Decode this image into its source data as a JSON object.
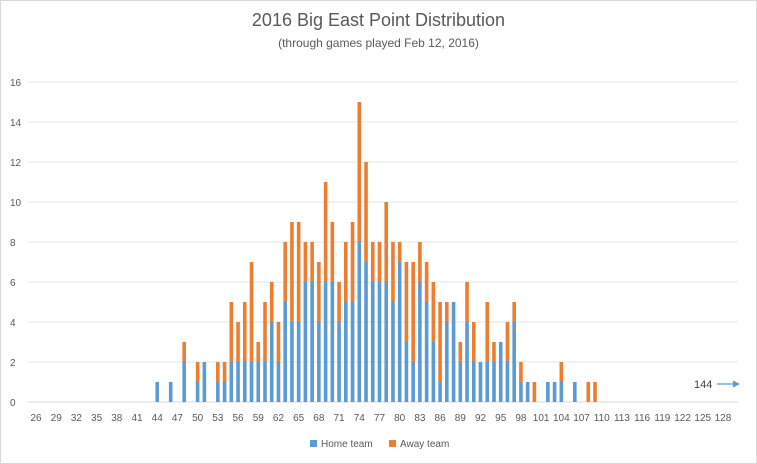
{
  "chart_data": {
    "type": "bar",
    "stacked": true,
    "title": "2016 Big East Point Distribution",
    "subtitle": "(through games played Feb 12, 2016)",
    "xlabel": "",
    "ylabel": "",
    "ylim": [
      0,
      16
    ],
    "y_ticks": [
      0,
      2,
      4,
      6,
      8,
      10,
      12,
      14,
      16
    ],
    "x_start": 26,
    "x_end": 128,
    "x_tick_labels": [
      "26",
      "29",
      "32",
      "35",
      "38",
      "41",
      "44",
      "47",
      "50",
      "53",
      "56",
      "59",
      "62",
      "65",
      "68",
      "71",
      "74",
      "77",
      "80",
      "83",
      "86",
      "89",
      "92",
      "95",
      "98",
      "101",
      "104",
      "107",
      "110",
      "113",
      "116",
      "119",
      "122",
      "125",
      "128"
    ],
    "grid": "horizontal",
    "legend_position": "bottom",
    "series": [
      {
        "name": "Home team",
        "color": "#5b9bd5",
        "points": [
          [
            44,
            1
          ],
          [
            46,
            1
          ],
          [
            48,
            2
          ],
          [
            50,
            1
          ],
          [
            51,
            2
          ],
          [
            53,
            1
          ],
          [
            54,
            1
          ],
          [
            55,
            2
          ],
          [
            56,
            2
          ],
          [
            57,
            2
          ],
          [
            58,
            2
          ],
          [
            59,
            2
          ],
          [
            60,
            2
          ],
          [
            61,
            4
          ],
          [
            62,
            2
          ],
          [
            63,
            5
          ],
          [
            64,
            4
          ],
          [
            65,
            4
          ],
          [
            66,
            6
          ],
          [
            67,
            6
          ],
          [
            68,
            4
          ],
          [
            69,
            6
          ],
          [
            70,
            6
          ],
          [
            71,
            4
          ],
          [
            72,
            5
          ],
          [
            73,
            5
          ],
          [
            74,
            8
          ],
          [
            75,
            7
          ],
          [
            76,
            6
          ],
          [
            77,
            6
          ],
          [
            78,
            6
          ],
          [
            79,
            5
          ],
          [
            80,
            7
          ],
          [
            81,
            3
          ],
          [
            82,
            2
          ],
          [
            83,
            6
          ],
          [
            84,
            5
          ],
          [
            85,
            3
          ],
          [
            86,
            1
          ],
          [
            87,
            4
          ],
          [
            88,
            5
          ],
          [
            89,
            2
          ],
          [
            90,
            4
          ],
          [
            91,
            2
          ],
          [
            92,
            2
          ],
          [
            93,
            2
          ],
          [
            94,
            2
          ],
          [
            95,
            3
          ],
          [
            96,
            2
          ],
          [
            97,
            4
          ],
          [
            98,
            1
          ],
          [
            99,
            1
          ],
          [
            102,
            1
          ],
          [
            103,
            1
          ],
          [
            104,
            1
          ],
          [
            106,
            1
          ]
        ]
      },
      {
        "name": "Away team",
        "color": "#ed7d31",
        "points": [
          [
            48,
            1
          ],
          [
            50,
            1
          ],
          [
            51,
            0
          ],
          [
            53,
            1
          ],
          [
            54,
            1
          ],
          [
            55,
            3
          ],
          [
            56,
            2
          ],
          [
            57,
            3
          ],
          [
            58,
            5
          ],
          [
            59,
            1
          ],
          [
            60,
            3
          ],
          [
            61,
            2
          ],
          [
            62,
            2
          ],
          [
            63,
            3
          ],
          [
            64,
            5
          ],
          [
            65,
            5
          ],
          [
            66,
            2
          ],
          [
            67,
            2
          ],
          [
            68,
            3
          ],
          [
            69,
            5
          ],
          [
            70,
            3
          ],
          [
            71,
            2
          ],
          [
            72,
            3
          ],
          [
            73,
            4
          ],
          [
            74,
            7
          ],
          [
            75,
            5
          ],
          [
            76,
            2
          ],
          [
            77,
            2
          ],
          [
            78,
            4
          ],
          [
            79,
            3
          ],
          [
            80,
            1
          ],
          [
            81,
            4
          ],
          [
            82,
            5
          ],
          [
            83,
            2
          ],
          [
            84,
            2
          ],
          [
            85,
            3
          ],
          [
            86,
            4
          ],
          [
            87,
            1
          ],
          [
            88,
            0
          ],
          [
            89,
            1
          ],
          [
            90,
            2
          ],
          [
            91,
            2
          ],
          [
            93,
            3
          ],
          [
            94,
            1
          ],
          [
            95,
            0
          ],
          [
            96,
            2
          ],
          [
            97,
            1
          ],
          [
            98,
            1
          ],
          [
            100,
            1
          ],
          [
            104,
            1
          ],
          [
            108,
            1
          ],
          [
            109,
            1
          ]
        ]
      }
    ],
    "annotation": {
      "label": "144",
      "arrow": "right"
    }
  }
}
